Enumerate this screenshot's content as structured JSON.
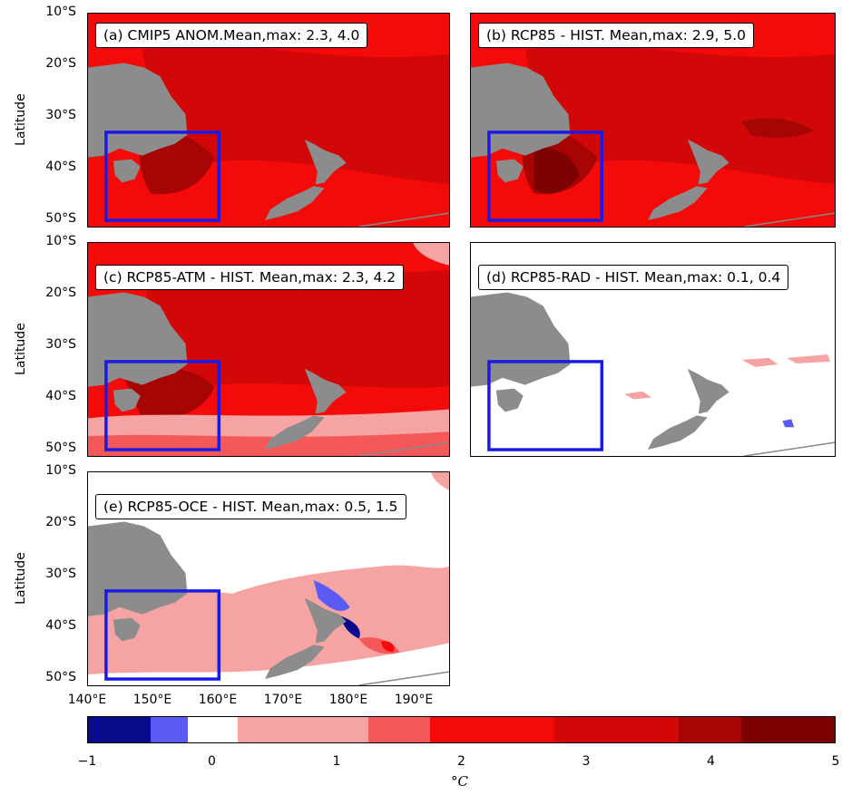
{
  "axes": {
    "ylabel": "Latitude",
    "yticks": [
      "10°S",
      "20°S",
      "30°S",
      "40°S",
      "50°S"
    ],
    "xticks": [
      "140°E",
      "150°E",
      "160°E",
      "170°E",
      "180°E",
      "190°E"
    ]
  },
  "panels": [
    {
      "label": "(a) CMIP5 ANOM.Mean,max: 2.3, 4.0",
      "scheme": "hot"
    },
    {
      "label": "(b) RCP85 - HIST. Mean,max: 2.9, 5.0",
      "scheme": "hotter"
    },
    {
      "label": "(c) RCP85-ATM - HIST. Mean,max: 2.3, 4.2",
      "scheme": "atm"
    },
    {
      "label": "(d) RCP85-RAD - HIST. Mean,max: 0.1, 0.4",
      "scheme": "rad"
    },
    {
      "label": "(e) RCP85-OCE - HIST. Mean,max: 0.5, 1.5",
      "scheme": "oce"
    }
  ],
  "colorbar": {
    "ticks": [
      "−1",
      "0",
      "1",
      "2",
      "3",
      "4",
      "5"
    ],
    "unit": "°C",
    "bins": [
      {
        "from": -1.0,
        "to": -0.5,
        "color": "#0a0a8c"
      },
      {
        "from": -0.5,
        "to": -0.2,
        "color": "#5a5af5"
      },
      {
        "from": -0.2,
        "to": 0.2,
        "color": "#ffffff"
      },
      {
        "from": 0.2,
        "to": 1.25,
        "color": "#f5a3a3"
      },
      {
        "from": 1.25,
        "to": 1.75,
        "color": "#f55858"
      },
      {
        "from": 1.75,
        "to": 2.75,
        "color": "#f50a0a"
      },
      {
        "from": 2.75,
        "to": 3.75,
        "color": "#d20808"
      },
      {
        "from": 3.75,
        "to": 4.25,
        "color": "#a70404"
      },
      {
        "from": 4.25,
        "to": 5.0,
        "color": "#7d0202"
      }
    ]
  },
  "colors": {
    "land": "#8c8c8c",
    "box": "#1a1ae6"
  }
}
